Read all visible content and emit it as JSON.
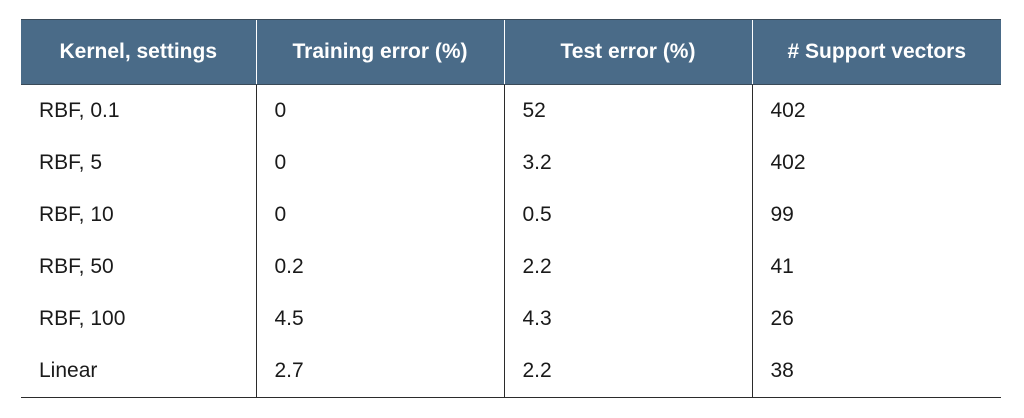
{
  "table": {
    "headers": [
      "Kernel, settings",
      "Training error (%)",
      "Test error (%)",
      "# Support vectors"
    ],
    "rows": [
      [
        "RBF, 0.1",
        "0",
        "52",
        "402"
      ],
      [
        "RBF, 5",
        "0",
        "3.2",
        "402"
      ],
      [
        "RBF, 10",
        "0",
        "0.5",
        "99"
      ],
      [
        "RBF, 50",
        "0.2",
        "2.2",
        "41"
      ],
      [
        "RBF, 100",
        "4.5",
        "4.3",
        "26"
      ],
      [
        "Linear",
        "2.7",
        "2.2",
        "38"
      ]
    ]
  },
  "colors": {
    "header_bg": "#4a6b88",
    "header_text": "#ffffff",
    "body_text": "#1a1a1a",
    "rule": "#2b2b2b"
  }
}
